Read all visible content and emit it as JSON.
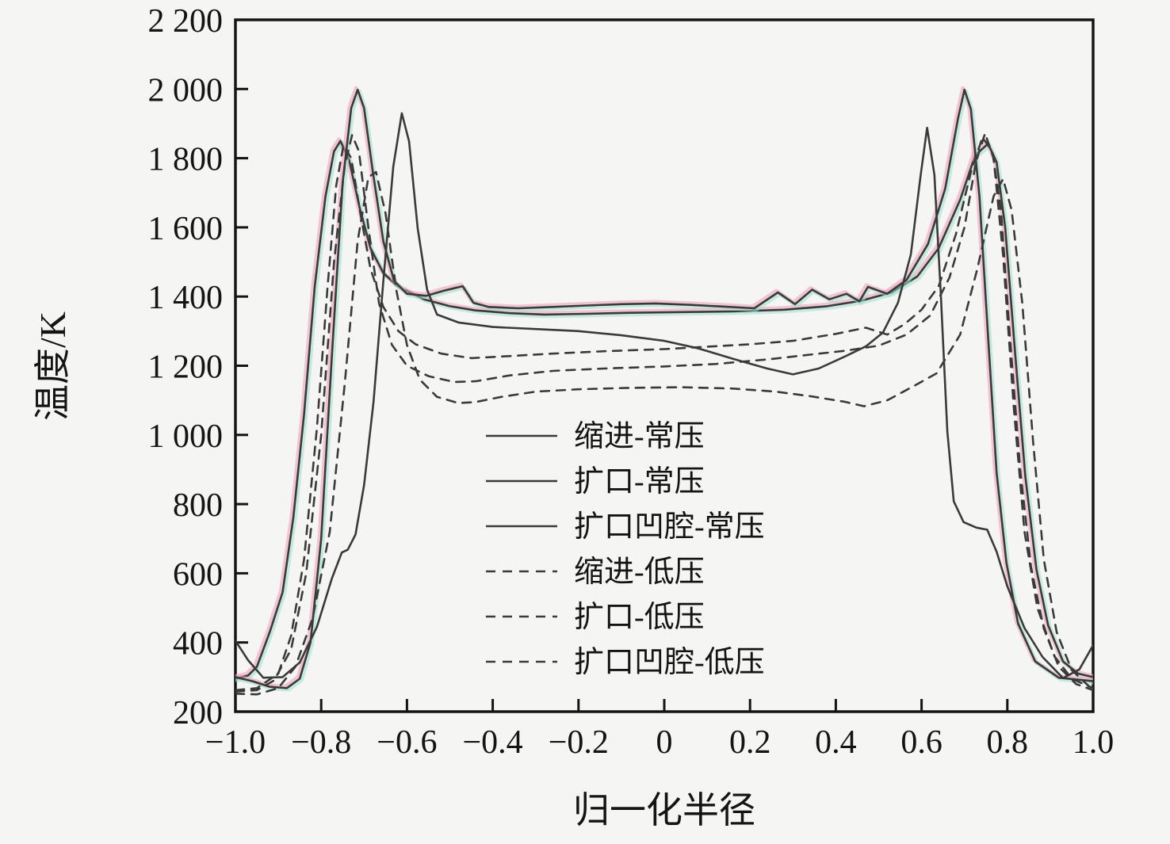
{
  "figure": {
    "background": "#f5f5f3",
    "ink": "#141414",
    "curve_color": "#3a3a3a",
    "artifact_pink": "#ef9ab5",
    "artifact_teal": "#9adfce"
  },
  "chart_data": {
    "type": "line",
    "title": "",
    "xlabel": "归一化半径",
    "ylabel": "温度/K",
    "xlim": [
      -1.0,
      1.0
    ],
    "ylim": [
      200,
      2200
    ],
    "grid": false,
    "legend_position": "inside lower-center",
    "xticks": {
      "values": [
        -1.0,
        -0.8,
        -0.6,
        -0.4,
        -0.2,
        0,
        0.2,
        0.4,
        0.6,
        0.8,
        1.0
      ],
      "labels": [
        "−1.0",
        "−0.8",
        "−0.6",
        "−0.4",
        "−0.2",
        "0",
        "0.2",
        "0.4",
        "0.6",
        "0.8",
        "1.0"
      ]
    },
    "yticks": {
      "values": [
        200,
        400,
        600,
        800,
        1000,
        1200,
        1400,
        1600,
        1800,
        2000,
        2200
      ],
      "labels": [
        "200",
        "400",
        "600",
        "800",
        "1 000",
        "1 200",
        "1 400",
        "1 600",
        "1 800",
        "2 000",
        "2 200"
      ]
    },
    "series": [
      {
        "name": "缩进-常压",
        "line": "solid",
        "color": "#3a3a3a",
        "halo": true,
        "points": [
          [
            -1.0,
            295
          ],
          [
            -0.97,
            305
          ],
          [
            -0.95,
            330
          ],
          [
            -0.92,
            430
          ],
          [
            -0.89,
            545
          ],
          [
            -0.865,
            760
          ],
          [
            -0.84,
            1060
          ],
          [
            -0.815,
            1430
          ],
          [
            -0.79,
            1690
          ],
          [
            -0.77,
            1820
          ],
          [
            -0.755,
            1850
          ],
          [
            -0.735,
            1795
          ],
          [
            -0.71,
            1655
          ],
          [
            -0.685,
            1540
          ],
          [
            -0.655,
            1468
          ],
          [
            -0.62,
            1428
          ],
          [
            -0.56,
            1392
          ],
          [
            -0.5,
            1372
          ],
          [
            -0.44,
            1360
          ],
          [
            -0.36,
            1352
          ],
          [
            -0.28,
            1348
          ],
          [
            -0.18,
            1350
          ],
          [
            -0.08,
            1353
          ],
          [
            0.04,
            1355
          ],
          [
            0.16,
            1357
          ],
          [
            0.28,
            1362
          ],
          [
            0.38,
            1372
          ],
          [
            0.46,
            1388
          ],
          [
            0.53,
            1412
          ],
          [
            0.59,
            1458
          ],
          [
            0.64,
            1540
          ],
          [
            0.69,
            1680
          ],
          [
            0.725,
            1808
          ],
          [
            0.755,
            1842
          ],
          [
            0.775,
            1788
          ],
          [
            0.795,
            1600
          ],
          [
            0.818,
            1240
          ],
          [
            0.842,
            880
          ],
          [
            0.868,
            610
          ],
          [
            0.895,
            450
          ],
          [
            0.93,
            345
          ],
          [
            0.965,
            310
          ],
          [
            1.0,
            300
          ]
        ]
      },
      {
        "name": "扩口-常压",
        "line": "solid",
        "color": "#3a3a3a",
        "halo": true,
        "points": [
          [
            -1.0,
            300
          ],
          [
            -0.96,
            288
          ],
          [
            -0.92,
            272
          ],
          [
            -0.88,
            268
          ],
          [
            -0.85,
            295
          ],
          [
            -0.825,
            400
          ],
          [
            -0.8,
            700
          ],
          [
            -0.775,
            1230
          ],
          [
            -0.75,
            1730
          ],
          [
            -0.73,
            1945
          ],
          [
            -0.715,
            1998
          ],
          [
            -0.7,
            1945
          ],
          [
            -0.68,
            1765
          ],
          [
            -0.655,
            1560
          ],
          [
            -0.63,
            1445
          ],
          [
            -0.6,
            1408
          ],
          [
            -0.555,
            1402
          ],
          [
            -0.51,
            1418
          ],
          [
            -0.47,
            1430
          ],
          [
            -0.445,
            1382
          ],
          [
            -0.41,
            1370
          ],
          [
            -0.34,
            1366
          ],
          [
            -0.26,
            1370
          ],
          [
            -0.18,
            1374
          ],
          [
            -0.1,
            1378
          ],
          [
            -0.02,
            1380
          ],
          [
            0.06,
            1376
          ],
          [
            0.14,
            1371
          ],
          [
            0.21,
            1366
          ],
          [
            0.265,
            1412
          ],
          [
            0.305,
            1378
          ],
          [
            0.345,
            1420
          ],
          [
            0.385,
            1392
          ],
          [
            0.425,
            1408
          ],
          [
            0.455,
            1386
          ],
          [
            0.475,
            1428
          ],
          [
            0.52,
            1408
          ],
          [
            0.565,
            1448
          ],
          [
            0.615,
            1552
          ],
          [
            0.655,
            1712
          ],
          [
            0.685,
            1915
          ],
          [
            0.7,
            1998
          ],
          [
            0.715,
            1942
          ],
          [
            0.735,
            1690
          ],
          [
            0.755,
            1285
          ],
          [
            0.775,
            890
          ],
          [
            0.798,
            630
          ],
          [
            0.825,
            455
          ],
          [
            0.865,
            345
          ],
          [
            0.92,
            298
          ],
          [
            1.0,
            288
          ]
        ]
      },
      {
        "name": "扩口凹腔-常压",
        "line": "solid",
        "color": "#3a3a3a",
        "halo": false,
        "points": [
          [
            -1.0,
            405
          ],
          [
            -0.97,
            348
          ],
          [
            -0.935,
            298
          ],
          [
            -0.89,
            300
          ],
          [
            -0.85,
            342
          ],
          [
            -0.81,
            445
          ],
          [
            -0.775,
            585
          ],
          [
            -0.752,
            660
          ],
          [
            -0.738,
            668
          ],
          [
            -0.72,
            712
          ],
          [
            -0.7,
            855
          ],
          [
            -0.678,
            1095
          ],
          [
            -0.655,
            1445
          ],
          [
            -0.632,
            1775
          ],
          [
            -0.612,
            1930
          ],
          [
            -0.595,
            1848
          ],
          [
            -0.575,
            1598
          ],
          [
            -0.553,
            1420
          ],
          [
            -0.53,
            1348
          ],
          [
            -0.48,
            1325
          ],
          [
            -0.4,
            1312
          ],
          [
            -0.3,
            1306
          ],
          [
            -0.2,
            1300
          ],
          [
            -0.1,
            1288
          ],
          [
            0.0,
            1272
          ],
          [
            0.08,
            1250
          ],
          [
            0.16,
            1220
          ],
          [
            0.24,
            1192
          ],
          [
            0.3,
            1175
          ],
          [
            0.36,
            1192
          ],
          [
            0.42,
            1226
          ],
          [
            0.47,
            1256
          ],
          [
            0.51,
            1296
          ],
          [
            0.545,
            1382
          ],
          [
            0.575,
            1522
          ],
          [
            0.598,
            1752
          ],
          [
            0.613,
            1888
          ],
          [
            0.63,
            1752
          ],
          [
            0.645,
            1405
          ],
          [
            0.66,
            1010
          ],
          [
            0.675,
            808
          ],
          [
            0.698,
            748
          ],
          [
            0.728,
            732
          ],
          [
            0.753,
            726
          ],
          [
            0.775,
            662
          ],
          [
            0.8,
            562
          ],
          [
            0.84,
            442
          ],
          [
            0.882,
            358
          ],
          [
            0.93,
            297
          ],
          [
            0.968,
            322
          ],
          [
            1.0,
            392
          ]
        ]
      },
      {
        "name": "缩进-低压",
        "line": "dashed",
        "color": "#3a3a3a",
        "halo": false,
        "points": [
          [
            -1.0,
            262
          ],
          [
            -0.95,
            268
          ],
          [
            -0.9,
            310
          ],
          [
            -0.87,
            420
          ],
          [
            -0.84,
            640
          ],
          [
            -0.81,
            1020
          ],
          [
            -0.785,
            1430
          ],
          [
            -0.765,
            1720
          ],
          [
            -0.748,
            1838
          ],
          [
            -0.73,
            1800
          ],
          [
            -0.71,
            1650
          ],
          [
            -0.685,
            1480
          ],
          [
            -0.655,
            1370
          ],
          [
            -0.62,
            1300
          ],
          [
            -0.58,
            1262
          ],
          [
            -0.52,
            1235
          ],
          [
            -0.45,
            1222
          ],
          [
            -0.36,
            1228
          ],
          [
            -0.26,
            1235
          ],
          [
            -0.14,
            1242
          ],
          [
            0.0,
            1248
          ],
          [
            0.1,
            1255
          ],
          [
            0.2,
            1262
          ],
          [
            0.3,
            1272
          ],
          [
            0.4,
            1292
          ],
          [
            0.47,
            1310
          ],
          [
            0.52,
            1290
          ],
          [
            0.56,
            1320
          ],
          [
            0.6,
            1362
          ],
          [
            0.64,
            1430
          ],
          [
            0.68,
            1580
          ],
          [
            0.715,
            1760
          ],
          [
            0.742,
            1860
          ],
          [
            0.765,
            1820
          ],
          [
            0.785,
            1650
          ],
          [
            0.805,
            1300
          ],
          [
            0.83,
            900
          ],
          [
            0.855,
            620
          ],
          [
            0.885,
            440
          ],
          [
            0.92,
            330
          ],
          [
            0.96,
            280
          ],
          [
            1.0,
            262
          ]
        ]
      },
      {
        "name": "扩口-低压",
        "line": "dashed",
        "color": "#3a3a3a",
        "halo": false,
        "points": [
          [
            -1.0,
            258
          ],
          [
            -0.95,
            262
          ],
          [
            -0.91,
            290
          ],
          [
            -0.87,
            380
          ],
          [
            -0.835,
            600
          ],
          [
            -0.8,
            1000
          ],
          [
            -0.77,
            1500
          ],
          [
            -0.745,
            1780
          ],
          [
            -0.728,
            1867
          ],
          [
            -0.712,
            1820
          ],
          [
            -0.69,
            1600
          ],
          [
            -0.665,
            1380
          ],
          [
            -0.635,
            1260
          ],
          [
            -0.6,
            1200
          ],
          [
            -0.55,
            1170
          ],
          [
            -0.49,
            1153
          ],
          [
            -0.44,
            1155
          ],
          [
            -0.36,
            1172
          ],
          [
            -0.26,
            1185
          ],
          [
            -0.14,
            1192
          ],
          [
            0.0,
            1198
          ],
          [
            0.12,
            1205
          ],
          [
            0.24,
            1218
          ],
          [
            0.34,
            1232
          ],
          [
            0.42,
            1243
          ],
          [
            0.5,
            1258
          ],
          [
            0.565,
            1290
          ],
          [
            0.62,
            1345
          ],
          [
            0.665,
            1455
          ],
          [
            0.7,
            1600
          ],
          [
            0.727,
            1790
          ],
          [
            0.748,
            1872
          ],
          [
            0.768,
            1800
          ],
          [
            0.79,
            1520
          ],
          [
            0.815,
            1080
          ],
          [
            0.84,
            720
          ],
          [
            0.87,
            500
          ],
          [
            0.91,
            360
          ],
          [
            0.95,
            295
          ],
          [
            1.0,
            268
          ]
        ]
      },
      {
        "name": "扩口凹腔-低压",
        "line": "dashed",
        "color": "#3a3a3a",
        "halo": false,
        "points": [
          [
            -1.0,
            252
          ],
          [
            -0.95,
            250
          ],
          [
            -0.9,
            268
          ],
          [
            -0.86,
            330
          ],
          [
            -0.82,
            470
          ],
          [
            -0.78,
            720
          ],
          [
            -0.745,
            1150
          ],
          [
            -0.715,
            1560
          ],
          [
            -0.69,
            1745
          ],
          [
            -0.672,
            1760
          ],
          [
            -0.65,
            1640
          ],
          [
            -0.625,
            1420
          ],
          [
            -0.6,
            1260
          ],
          [
            -0.57,
            1160
          ],
          [
            -0.53,
            1110
          ],
          [
            -0.48,
            1092
          ],
          [
            -0.44,
            1095
          ],
          [
            -0.38,
            1110
          ],
          [
            -0.3,
            1125
          ],
          [
            -0.2,
            1132
          ],
          [
            -0.08,
            1136
          ],
          [
            0.04,
            1138
          ],
          [
            0.16,
            1134
          ],
          [
            0.26,
            1125
          ],
          [
            0.34,
            1112
          ],
          [
            0.42,
            1096
          ],
          [
            0.466,
            1083
          ],
          [
            0.52,
            1100
          ],
          [
            0.58,
            1140
          ],
          [
            0.635,
            1178
          ],
          [
            0.69,
            1290
          ],
          [
            0.73,
            1480
          ],
          [
            0.768,
            1690
          ],
          [
            0.79,
            1740
          ],
          [
            0.81,
            1650
          ],
          [
            0.835,
            1380
          ],
          [
            0.86,
            980
          ],
          [
            0.885,
            640
          ],
          [
            0.915,
            430
          ],
          [
            0.95,
            320
          ],
          [
            1.0,
            262
          ]
        ]
      }
    ]
  }
}
